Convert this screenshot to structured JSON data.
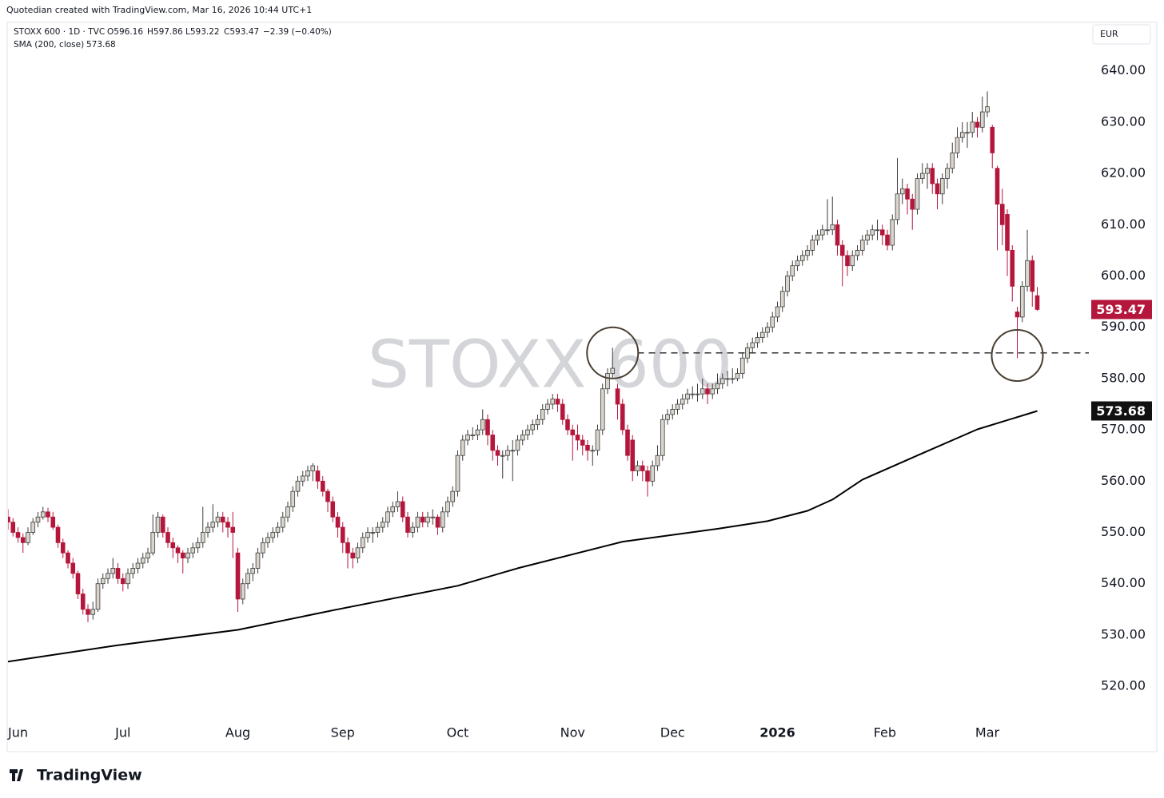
{
  "attribution": "Quotedian created with TradingView.com, Mar 16, 2026 10:44 UTC+1",
  "branding": "TradingView",
  "chart_data": {
    "type": "candlestick",
    "header": {
      "symbol": "STOXX 600 · 1D · TVC",
      "ohlc": [
        "O596.16",
        "H597.86",
        "L593.22",
        "C593.47"
      ],
      "change": "−2.39 (−0.40%)"
    },
    "watermark": "STOXX 600",
    "currency": "EUR",
    "up_color": "#d9d5cc",
    "down_color": "#b5173c",
    "wick_color": "#3a3a3a",
    "ylim": [
      507.4,
      649.3
    ],
    "yticks": [
      {
        "value": 520,
        "label": "520.00"
      },
      {
        "value": 530,
        "label": "530.00"
      },
      {
        "value": 540,
        "label": "540.00"
      },
      {
        "value": 550,
        "label": "550.00"
      },
      {
        "value": 560,
        "label": "560.00"
      },
      {
        "value": 570,
        "label": "570.00"
      },
      {
        "value": 580,
        "label": "580.00"
      },
      {
        "value": 590,
        "label": "590.00"
      },
      {
        "value": 600,
        "label": "600.00"
      },
      {
        "value": 610,
        "label": "610.00"
      },
      {
        "value": 620,
        "label": "620.00"
      },
      {
        "value": 630,
        "label": "630.00"
      },
      {
        "value": 640,
        "label": "640.00"
      }
    ],
    "xticks": [
      {
        "value": 2,
        "label": "Jun"
      },
      {
        "value": 23,
        "label": "Jul"
      },
      {
        "value": 46,
        "label": "Aug"
      },
      {
        "value": 67,
        "label": "Sep"
      },
      {
        "value": 90,
        "label": "Oct"
      },
      {
        "value": 113,
        "label": "Nov"
      },
      {
        "value": 133,
        "label": "Dec"
      },
      {
        "value": 154,
        "label": "2026"
      },
      {
        "value": 175.5,
        "label": "Feb"
      },
      {
        "value": 196,
        "label": "Mar"
      }
    ],
    "candles": [
      [
        553,
        554.5,
        550.5,
        552
      ],
      [
        552,
        552.8,
        549.2,
        550
      ],
      [
        550,
        551,
        548,
        549
      ],
      [
        549,
        549.8,
        546,
        548
      ],
      [
        548,
        551,
        547.5,
        550
      ],
      [
        550,
        552.8,
        549.5,
        552
      ],
      [
        552,
        554,
        551,
        553
      ],
      [
        553,
        555,
        552.5,
        554
      ],
      [
        554,
        554.8,
        552,
        553
      ],
      [
        553,
        554,
        550.5,
        551
      ],
      [
        551,
        551.5,
        547,
        548
      ],
      [
        548,
        548.8,
        545,
        546
      ],
      [
        546,
        546.5,
        543,
        544
      ],
      [
        544,
        545,
        541,
        542
      ],
      [
        542,
        542.5,
        537,
        538
      ],
      [
        538,
        539,
        534,
        535
      ],
      [
        535,
        536,
        532.5,
        534
      ],
      [
        534,
        536.5,
        533,
        535
      ],
      [
        535,
        541,
        534.5,
        540
      ],
      [
        540,
        542,
        539,
        541
      ],
      [
        541,
        543,
        540,
        542
      ],
      [
        542,
        545,
        541,
        543
      ],
      [
        543,
        544,
        540,
        541
      ],
      [
        541,
        542,
        538.5,
        540
      ],
      [
        540,
        543,
        539,
        542
      ],
      [
        542,
        544,
        541,
        543
      ],
      [
        543,
        545,
        542,
        544
      ],
      [
        544,
        546,
        543,
        545
      ],
      [
        545,
        547,
        544,
        546
      ],
      [
        546,
        553.5,
        545.5,
        550
      ],
      [
        550,
        554,
        549,
        553
      ],
      [
        553,
        553.5,
        549,
        550
      ],
      [
        550,
        551,
        547,
        548
      ],
      [
        548,
        549,
        545,
        547
      ],
      [
        547,
        547.5,
        544,
        546
      ],
      [
        546,
        546.5,
        542,
        545
      ],
      [
        545,
        547,
        544,
        546
      ],
      [
        546,
        548,
        545,
        547
      ],
      [
        547,
        549,
        546,
        548
      ],
      [
        548,
        555,
        547,
        550
      ],
      [
        550,
        552,
        549,
        551
      ],
      [
        551,
        555.5,
        550,
        552
      ],
      [
        552,
        554,
        551,
        553
      ],
      [
        553,
        554,
        550,
        552
      ],
      [
        552,
        553,
        549,
        551
      ],
      [
        551,
        554,
        545,
        550
      ],
      [
        546,
        547,
        534.5,
        537
      ],
      [
        537,
        541,
        536,
        540
      ],
      [
        540,
        543,
        539,
        542
      ],
      [
        542,
        544,
        540.5,
        543
      ],
      [
        543,
        547,
        542,
        546
      ],
      [
        546,
        549,
        545,
        548
      ],
      [
        548,
        550,
        547,
        549
      ],
      [
        549,
        551,
        548,
        550
      ],
      [
        550,
        552,
        549,
        551
      ],
      [
        551,
        554,
        550,
        553
      ],
      [
        553,
        556,
        552,
        555
      ],
      [
        555,
        559,
        554,
        558
      ],
      [
        558,
        561,
        557,
        560
      ],
      [
        560,
        562,
        559,
        561
      ],
      [
        561,
        563,
        560,
        562
      ],
      [
        562,
        563.5,
        560,
        563
      ],
      [
        562,
        563,
        558.5,
        560
      ],
      [
        560,
        561,
        557,
        558
      ],
      [
        558,
        558.5,
        554,
        556
      ],
      [
        556,
        557,
        552,
        553
      ],
      [
        553,
        554,
        549,
        551
      ],
      [
        551,
        552,
        546,
        548
      ],
      [
        548,
        549,
        543,
        546
      ],
      [
        546,
        547,
        543,
        545
      ],
      [
        545,
        548,
        544,
        547
      ],
      [
        547,
        550,
        546,
        549
      ],
      [
        549,
        551,
        548,
        550
      ],
      [
        550,
        551,
        548,
        550
      ],
      [
        550,
        552,
        549,
        551
      ],
      [
        551,
        553,
        550,
        552
      ],
      [
        552,
        555,
        551,
        554
      ],
      [
        554,
        556,
        553,
        555
      ],
      [
        555,
        558,
        554,
        556
      ],
      [
        556,
        557,
        552,
        553
      ],
      [
        553,
        554,
        549,
        550
      ],
      [
        550,
        552,
        549,
        551
      ],
      [
        551,
        554,
        550,
        553
      ],
      [
        553,
        554,
        551,
        552
      ],
      [
        552,
        554,
        551,
        553
      ],
      [
        553,
        554.5,
        551.5,
        553
      ],
      [
        553,
        553.5,
        549.5,
        551
      ],
      [
        551,
        555,
        550,
        554
      ],
      [
        554,
        557,
        553,
        556
      ],
      [
        556,
        559,
        555,
        558
      ],
      [
        558,
        566,
        557,
        565
      ],
      [
        565,
        569,
        564,
        568
      ],
      [
        568,
        570,
        567,
        569
      ],
      [
        569,
        570.5,
        568,
        569
      ],
      [
        569,
        571,
        568,
        570
      ],
      [
        570,
        574,
        569,
        572
      ],
      [
        572,
        573,
        567,
        569
      ],
      [
        569,
        570,
        564,
        566
      ],
      [
        566,
        567,
        563,
        565
      ],
      [
        565,
        566,
        560.5,
        565
      ],
      [
        565,
        567,
        564,
        566
      ],
      [
        566,
        568,
        560,
        566
      ],
      [
        566,
        569,
        565,
        568
      ],
      [
        568,
        570,
        567,
        569
      ],
      [
        569,
        571,
        568,
        570
      ],
      [
        570,
        572,
        569,
        571
      ],
      [
        571,
        573,
        570,
        572
      ],
      [
        572,
        575,
        571,
        574
      ],
      [
        574,
        576,
        573,
        575
      ],
      [
        575,
        577,
        574,
        576
      ],
      [
        576,
        577,
        573.5,
        575
      ],
      [
        575,
        576,
        571,
        572
      ],
      [
        572,
        573,
        569,
        570
      ],
      [
        570,
        571,
        564,
        569
      ],
      [
        569,
        571,
        566,
        568
      ],
      [
        568,
        569,
        565,
        567
      ],
      [
        567,
        568,
        564,
        566
      ],
      [
        566,
        567,
        563,
        566
      ],
      [
        566,
        571,
        565,
        570
      ],
      [
        570,
        579,
        569,
        578
      ],
      [
        578,
        582,
        577,
        581
      ],
      [
        581,
        586,
        580,
        582
      ],
      [
        578,
        579,
        572,
        575
      ],
      [
        575,
        576,
        569,
        570
      ],
      [
        570,
        571,
        564,
        565
      ],
      [
        568,
        569,
        560,
        562
      ],
      [
        562,
        564,
        561,
        563
      ],
      [
        563,
        564,
        560,
        562
      ],
      [
        562,
        563,
        557,
        560
      ],
      [
        560,
        564,
        559,
        563
      ],
      [
        563,
        567,
        562,
        565
      ],
      [
        565,
        573,
        564,
        572
      ],
      [
        572,
        574,
        571,
        573
      ],
      [
        573,
        575,
        572,
        574
      ],
      [
        574,
        576,
        573,
        575
      ],
      [
        575,
        577,
        574,
        576
      ],
      [
        576,
        578,
        575,
        577
      ],
      [
        577,
        578.5,
        576,
        577
      ],
      [
        577,
        579,
        575.5,
        577
      ],
      [
        577,
        580,
        576,
        578
      ],
      [
        578,
        579,
        575,
        577
      ],
      [
        577,
        579,
        576,
        578
      ],
      [
        578,
        581,
        577,
        579
      ],
      [
        579,
        581,
        578,
        580
      ],
      [
        580,
        581.5,
        578.5,
        580
      ],
      [
        580,
        582,
        579,
        580
      ],
      [
        580,
        582,
        579.5,
        581
      ],
      [
        581,
        585,
        580,
        584
      ],
      [
        584,
        587,
        583,
        586
      ],
      [
        586,
        588,
        585,
        587
      ],
      [
        587,
        589,
        586,
        588
      ],
      [
        588,
        590,
        587,
        589
      ],
      [
        589,
        591,
        588,
        590
      ],
      [
        590,
        593,
        589,
        592
      ],
      [
        592,
        595,
        591,
        594
      ],
      [
        594,
        598,
        593,
        597
      ],
      [
        597,
        601,
        596,
        600
      ],
      [
        600,
        603,
        599,
        602
      ],
      [
        602,
        604,
        601,
        603
      ],
      [
        603,
        605,
        602,
        604
      ],
      [
        604,
        606,
        603,
        605
      ],
      [
        605,
        608,
        604,
        607
      ],
      [
        607,
        609,
        606,
        608
      ],
      [
        608,
        610,
        607,
        609
      ],
      [
        609,
        615,
        608,
        609
      ],
      [
        609,
        615.5,
        608,
        610
      ],
      [
        610,
        611,
        604,
        606
      ],
      [
        606,
        607,
        598,
        604
      ],
      [
        604,
        605,
        600,
        602
      ],
      [
        602,
        605,
        601,
        604
      ],
      [
        604,
        606,
        603,
        605
      ],
      [
        605,
        608,
        604,
        607
      ],
      [
        607,
        609,
        606,
        608
      ],
      [
        608,
        610,
        607,
        609
      ],
      [
        609,
        611,
        607,
        609
      ],
      [
        609,
        610,
        606,
        608
      ],
      [
        608,
        609,
        605,
        606
      ],
      [
        606,
        612,
        605,
        611
      ],
      [
        611,
        623,
        610,
        616
      ],
      [
        616,
        619,
        614,
        617
      ],
      [
        617,
        618,
        612,
        615
      ],
      [
        615,
        616,
        609,
        613
      ],
      [
        613,
        620,
        612,
        619
      ],
      [
        619,
        622,
        618,
        620
      ],
      [
        620,
        622,
        617,
        621
      ],
      [
        621,
        622,
        616,
        618
      ],
      [
        618,
        619,
        613,
        616
      ],
      [
        616,
        620,
        614,
        619
      ],
      [
        619,
        622,
        617,
        621
      ],
      [
        621,
        626,
        620,
        624
      ],
      [
        624,
        629,
        623,
        627
      ],
      [
        627,
        630,
        626,
        628
      ],
      [
        628,
        630,
        625,
        628
      ],
      [
        628,
        632,
        627,
        630
      ],
      [
        630,
        631,
        627,
        629
      ],
      [
        629,
        635,
        628,
        632
      ],
      [
        632,
        636,
        631,
        633
      ],
      [
        629,
        629.5,
        621,
        624
      ],
      [
        621,
        621.5,
        605,
        614
      ],
      [
        614,
        617,
        606,
        610
      ],
      [
        612,
        613,
        600,
        605
      ],
      [
        605,
        606,
        595,
        598
      ],
      [
        593,
        594,
        584,
        592
      ],
      [
        592,
        599,
        591,
        598
      ],
      [
        598,
        609,
        597,
        603
      ],
      [
        603,
        604,
        594,
        597
      ],
      [
        596.16,
        597.86,
        593.22,
        593.47
      ]
    ],
    "sma": {
      "name": "SMA (200, close)",
      "color": "#000000",
      "x": [
        0,
        22,
        46,
        66,
        90,
        102,
        123,
        142,
        152,
        160,
        165,
        171,
        182,
        194,
        206
      ],
      "values": [
        524.8,
        528,
        531,
        535,
        539.6,
        543,
        548.2,
        550.7,
        552.2,
        554.2,
        556.4,
        560.3,
        565,
        570.1,
        573.68
      ]
    },
    "annotations": {
      "level": 585,
      "level_from": 126,
      "circles": [
        {
          "x": 121,
          "y": 585
        },
        {
          "x": 202,
          "y": 584.5
        }
      ]
    }
  }
}
